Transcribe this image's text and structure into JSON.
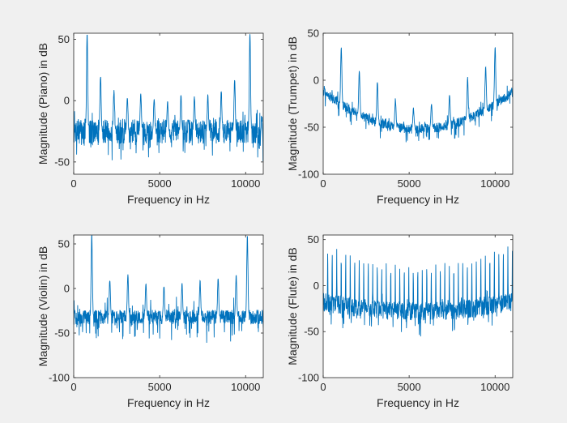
{
  "figure": {
    "background": "#f0f0f0",
    "plot_background": "#ffffff",
    "line_color": "#0072bd"
  },
  "chart_data": [
    {
      "type": "line",
      "title": "",
      "xlabel": "Frequency in Hz",
      "ylabel": "Magnitude (Piano) in dB",
      "xlim": [
        0,
        11025
      ],
      "ylim": [
        -60,
        55
      ],
      "xticks": [
        0,
        5000,
        10000
      ],
      "xtick_labels": [
        "0",
        "5000",
        "10000"
      ],
      "yticks": [
        -50,
        0,
        50
      ],
      "ytick_labels": [
        "-50",
        "0",
        "50"
      ],
      "grid": false,
      "series": [
        {
          "baseline": "flat",
          "level": -25,
          "noise": 10,
          "spread": 18,
          "peaks": [
            {
              "x": 780,
              "y": 55
            },
            {
              "x": 1560,
              "y": 20
            },
            {
              "x": 2340,
              "y": 8
            },
            {
              "x": 3120,
              "y": 3
            },
            {
              "x": 3900,
              "y": 5
            },
            {
              "x": 4680,
              "y": 2
            },
            {
              "x": 5460,
              "y": 0
            },
            {
              "x": 6240,
              "y": 5
            },
            {
              "x": 7020,
              "y": 3
            },
            {
              "x": 7800,
              "y": 4
            },
            {
              "x": 8580,
              "y": 8
            },
            {
              "x": 9360,
              "y": 18
            },
            {
              "x": 10250,
              "y": 55
            }
          ]
        }
      ]
    },
    {
      "type": "line",
      "title": "",
      "xlabel": "Frequency in Hz",
      "ylabel": "Magnitude (Trumpet) in dB",
      "xlim": [
        0,
        11025
      ],
      "ylim": [
        -100,
        50
      ],
      "xticks": [
        0,
        5000,
        10000
      ],
      "xtick_labels": [
        "0",
        "5000",
        "10000"
      ],
      "yticks": [
        -100,
        -50,
        0,
        50
      ],
      "ytick_labels": [
        "-100",
        "-50",
        "0",
        "50"
      ],
      "grid": false,
      "series": [
        {
          "baseline": "bowl",
          "edge": -12,
          "center": -52,
          "noise": 5,
          "spread": 14,
          "peaks": [
            {
              "x": 1050,
              "y": 35
            },
            {
              "x": 2100,
              "y": 10
            },
            {
              "x": 3150,
              "y": -3
            },
            {
              "x": 4200,
              "y": -20
            },
            {
              "x": 5250,
              "y": -30
            },
            {
              "x": 6300,
              "y": -25
            },
            {
              "x": 7350,
              "y": -15
            },
            {
              "x": 8400,
              "y": 2
            },
            {
              "x": 9450,
              "y": 15
            },
            {
              "x": 10000,
              "y": 35
            }
          ]
        }
      ]
    },
    {
      "type": "line",
      "title": "",
      "xlabel": "Frequency in Hz",
      "ylabel": "Magnitude (Violin) in dB",
      "xlim": [
        0,
        11025
      ],
      "ylim": [
        -100,
        60
      ],
      "xticks": [
        0,
        5000,
        10000
      ],
      "xtick_labels": [
        "0",
        "5000",
        "10000"
      ],
      "yticks": [
        -100,
        -50,
        0,
        50
      ],
      "ytick_labels": [
        "-100",
        "-50",
        "0",
        "50"
      ],
      "grid": false,
      "series": [
        {
          "baseline": "flat",
          "level": -32,
          "noise": 8,
          "spread": 22,
          "peaks": [
            {
              "x": 1050,
              "y": 60
            },
            {
              "x": 2100,
              "y": 10
            },
            {
              "x": 3150,
              "y": 15
            },
            {
              "x": 4200,
              "y": 5
            },
            {
              "x": 5250,
              "y": 2
            },
            {
              "x": 6300,
              "y": 5
            },
            {
              "x": 7350,
              "y": 8
            },
            {
              "x": 8400,
              "y": 12
            },
            {
              "x": 9450,
              "y": 15
            },
            {
              "x": 10100,
              "y": 60
            }
          ]
        }
      ]
    },
    {
      "type": "line",
      "title": "",
      "xlabel": "Frequency in Hz",
      "ylabel": "Magnitude (Flute) in dB",
      "xlim": [
        0,
        11025
      ],
      "ylim": [
        -100,
        55
      ],
      "xticks": [
        0,
        5000,
        10000
      ],
      "xtick_labels": [
        "0",
        "5000",
        "10000"
      ],
      "yticks": [
        -100,
        -50,
        0,
        50
      ],
      "ytick_labels": [
        "-100",
        "-50",
        "0",
        "50"
      ],
      "grid": false,
      "series": [
        {
          "baseline": "bowl",
          "edge": -18,
          "center": -28,
          "noise": 10,
          "spread": 20,
          "comb_spacing": 262,
          "comb_edge": 45,
          "comb_center": 20
        }
      ]
    }
  ]
}
